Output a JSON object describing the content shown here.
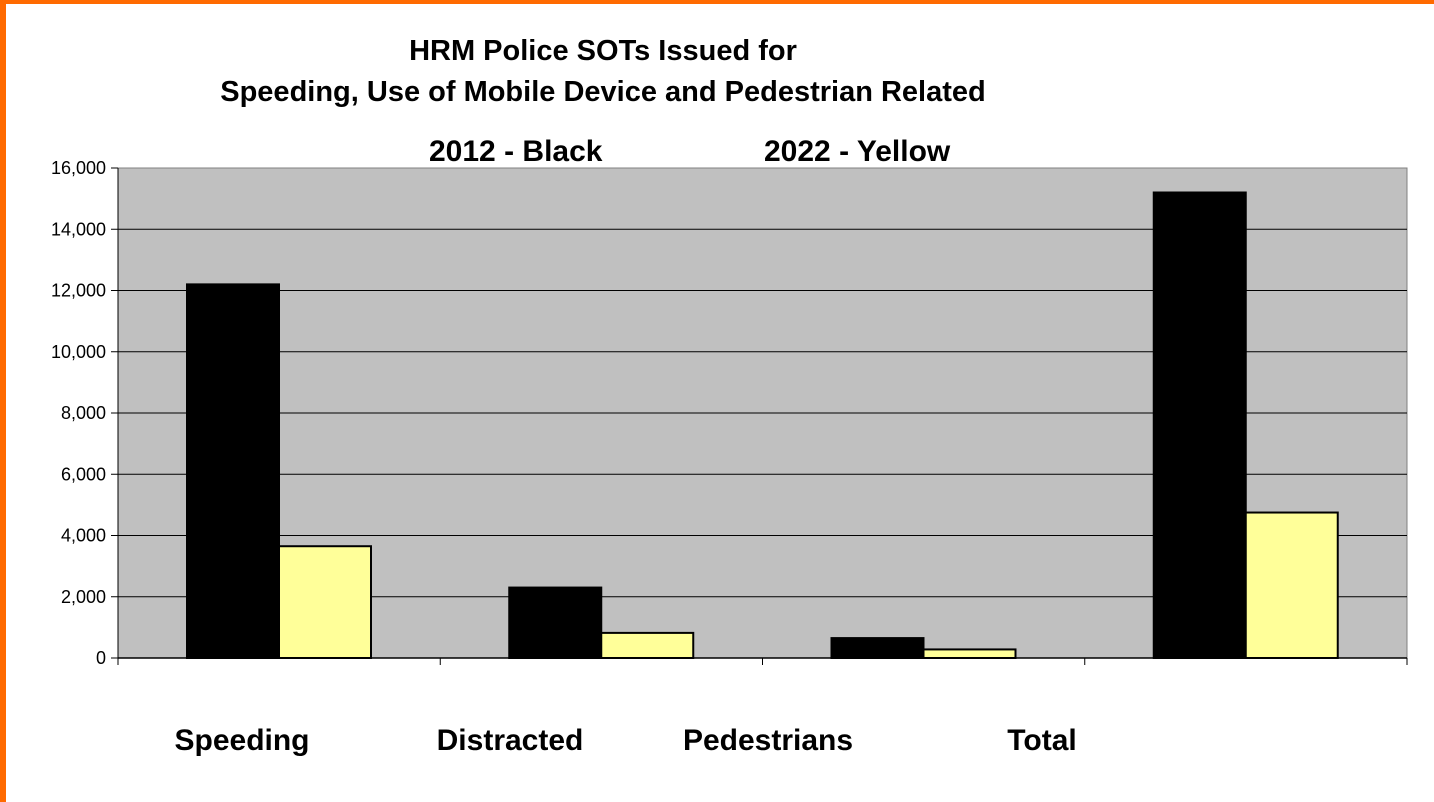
{
  "chart_data": {
    "type": "bar",
    "title": "HRM Police SOTs Issued for",
    "subtitle": "Speeding, Use of Mobile Device and Pedestrian Related",
    "categories": [
      "Speeding",
      "Distracted",
      "Pedestrians",
      "Total"
    ],
    "series": [
      {
        "name": "2012 - Black",
        "color": "#000000",
        "values": [
          12200,
          2300,
          650,
          15200
        ]
      },
      {
        "name": "2022 - Yellow",
        "color": "#ffff99",
        "values": [
          3650,
          820,
          280,
          4750
        ]
      }
    ],
    "ylim": [
      0,
      16000
    ],
    "yticks": [
      0,
      2000,
      4000,
      6000,
      8000,
      10000,
      12000,
      14000,
      16000
    ],
    "ytick_labels": [
      "0",
      "2,000",
      "4,000",
      "6,000",
      "8,000",
      "10,000",
      "12,000",
      "14,000",
      "16,000"
    ],
    "grid": true,
    "legend_placement": "top",
    "plot_background": "#c0c0c0",
    "frame_color": "#ff6a00"
  }
}
